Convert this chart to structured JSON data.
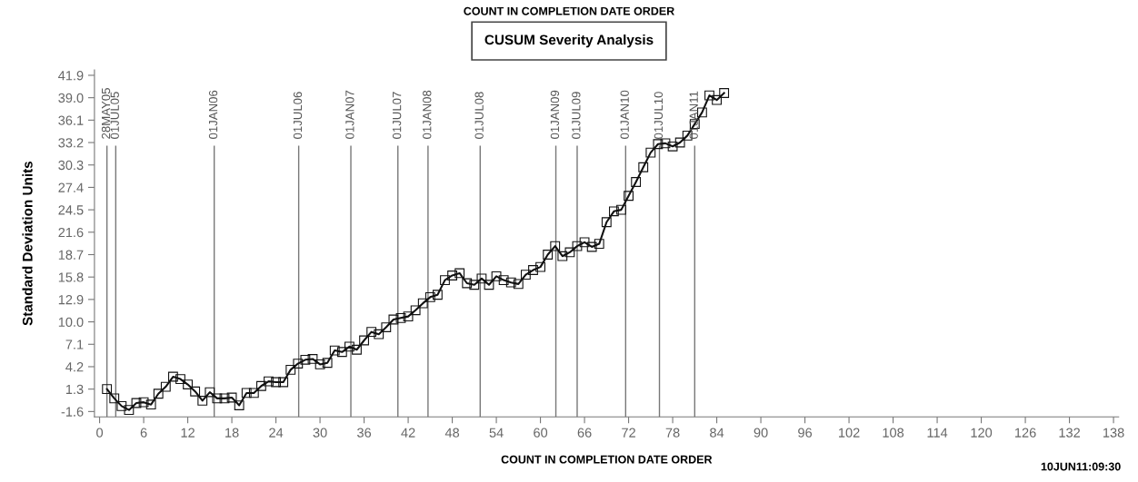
{
  "chart_data": {
    "type": "line",
    "title": "CUSUM Severity Analysis",
    "xlabel": "COUNT IN COMPLETION DATE ORDER",
    "ylabel": "Standard Deviation Units",
    "annotations": [
      "COUNT IN COMPLETION DATE ORDER",
      "10JUN11:09:30"
    ],
    "series": [
      {
        "color": "#111111",
        "x": [
          1,
          2,
          3,
          4,
          5,
          6,
          7,
          8,
          9,
          10,
          11,
          12,
          13,
          14,
          15,
          16,
          17,
          18,
          19,
          20,
          21,
          22,
          23,
          24,
          25,
          26,
          27,
          28,
          29,
          30,
          31,
          32,
          33,
          34,
          35,
          36,
          37,
          38,
          39,
          40,
          41,
          42,
          43,
          44,
          45,
          46,
          47,
          48,
          49,
          50,
          51,
          52,
          53,
          54,
          55,
          56,
          57,
          58,
          59,
          60,
          61,
          62,
          63,
          64,
          65,
          66,
          67,
          68,
          69,
          70,
          71,
          72,
          73,
          74,
          75,
          76,
          77,
          78,
          79,
          80,
          81,
          82,
          83,
          84,
          85
        ],
        "values": [
          1.3,
          0.1,
          -0.9,
          -1.4,
          -0.5,
          -0.4,
          -0.7,
          0.7,
          1.6,
          2.9,
          2.6,
          1.9,
          1.0,
          -0.2,
          0.9,
          0.1,
          0.1,
          0.2,
          -0.8,
          0.8,
          0.8,
          1.7,
          2.3,
          2.2,
          2.2,
          3.8,
          4.6,
          5.1,
          5.2,
          4.5,
          4.7,
          6.3,
          6.1,
          6.8,
          6.4,
          7.6,
          8.7,
          8.4,
          9.3,
          10.3,
          10.5,
          10.7,
          11.5,
          12.4,
          13.2,
          13.5,
          15.4,
          16.0,
          16.3,
          15.0,
          14.8,
          15.6,
          14.8,
          15.9,
          15.4,
          15.1,
          14.9,
          16.1,
          16.7,
          17.1,
          18.7,
          19.8,
          18.5,
          19.0,
          19.8,
          20.3,
          19.7,
          20.1,
          22.9,
          24.3,
          24.5,
          26.3,
          28.1,
          30.0,
          31.9,
          33.0,
          33.1,
          32.7,
          33.2,
          34.1,
          35.6,
          37.1,
          39.3,
          38.7,
          39.6
        ]
      }
    ],
    "marker": "square",
    "line_style": "solid",
    "grid": false,
    "legend": false,
    "xlim": [
      -0.7,
      138.7
    ],
    "xticks": [
      0,
      6,
      12,
      18,
      24,
      30,
      36,
      42,
      48,
      54,
      60,
      66,
      72,
      78,
      84,
      90,
      96,
      102,
      108,
      114,
      120,
      126,
      132,
      138
    ],
    "ylim": [
      -2.3,
      42.6
    ],
    "yticks": [
      -1.6,
      1.3,
      4.2,
      7.1,
      {
        "value": 10,
        "label": "10.0"
      },
      12.9,
      15.8,
      18.7,
      21.6,
      24.5,
      27.4,
      30.3,
      33.2,
      36.1,
      {
        "value": 39,
        "label": "39.0"
      },
      41.9
    ],
    "ref_lines": [
      {
        "axis": "x",
        "value": 1.0,
        "label": "28MAY05",
        "color": "#777777"
      },
      {
        "axis": "x",
        "value": 2.2,
        "label": "01JUL05",
        "color": "#777777"
      },
      {
        "axis": "x",
        "value": 15.6,
        "label": "01JAN06",
        "color": "#777777"
      },
      {
        "axis": "x",
        "value": 27.1,
        "label": "01JUL06",
        "color": "#777777"
      },
      {
        "axis": "x",
        "value": 34.2,
        "label": "01JAN07",
        "color": "#777777"
      },
      {
        "axis": "x",
        "value": 40.6,
        "label": "01JUL07",
        "color": "#777777"
      },
      {
        "axis": "x",
        "value": 44.7,
        "label": "01JAN08",
        "color": "#777777"
      },
      {
        "axis": "x",
        "value": 51.8,
        "label": "01JUL08",
        "color": "#777777"
      },
      {
        "axis": "x",
        "value": 62.1,
        "label": "01JAN09",
        "color": "#777777"
      },
      {
        "axis": "x",
        "value": 65.0,
        "label": "01JUL09",
        "color": "#777777"
      },
      {
        "axis": "x",
        "value": 71.6,
        "label": "01JAN10",
        "color": "#777777"
      },
      {
        "axis": "x",
        "value": 76.2,
        "label": "01JUL10",
        "color": "#777777"
      },
      {
        "axis": "x",
        "value": 81.0,
        "label": "01JAN11",
        "color": "#777777"
      }
    ]
  }
}
